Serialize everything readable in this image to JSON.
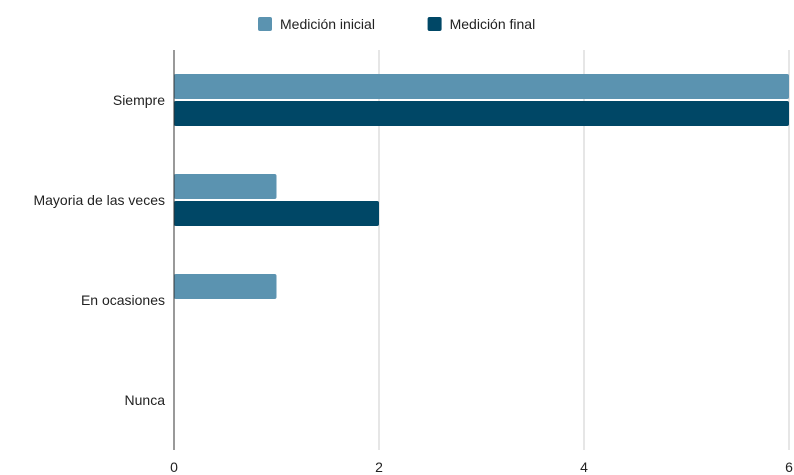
{
  "chart_data": {
    "type": "bar",
    "orientation": "horizontal",
    "title": "",
    "xlabel": "",
    "ylabel": "",
    "categories": [
      "Siempre",
      "Mayoria de las veces",
      "En ocasiones",
      "Nunca"
    ],
    "series": [
      {
        "name": "Medición inicial",
        "color": "#5b93b0",
        "values": [
          6,
          1,
          1,
          0
        ]
      },
      {
        "name": "Medición final",
        "color": "#004766",
        "values": [
          6,
          2,
          0,
          0
        ]
      }
    ],
    "xlim": [
      0,
      6
    ],
    "xticks": [
      "0",
      "2",
      "4",
      "6"
    ],
    "grid": true,
    "legend_position": "top-center"
  }
}
